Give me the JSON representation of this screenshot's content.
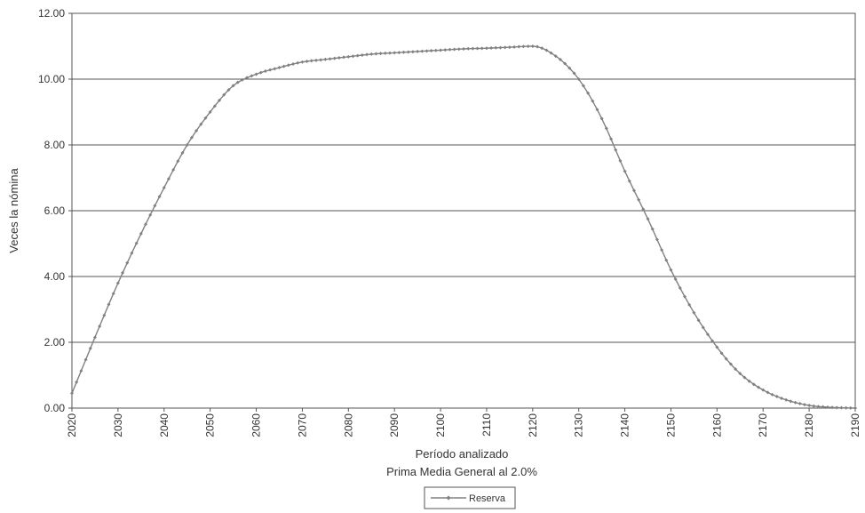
{
  "chart_data": {
    "type": "line",
    "title": "",
    "xlabel": "Período analizado",
    "xlabel_sub": "Prima Media General al 2.0%",
    "ylabel": "Veces la nómina",
    "xlim": [
      2020,
      2190
    ],
    "ylim": [
      0,
      12
    ],
    "x_ticks": [
      "2020",
      "2030",
      "2040",
      "2050",
      "2060",
      "2070",
      "2080",
      "2090",
      "2100",
      "2110",
      "2120",
      "2130",
      "2140",
      "2150",
      "2160",
      "2170",
      "2180",
      "2190"
    ],
    "y_ticks": [
      "0.00",
      "2.00",
      "4.00",
      "6.00",
      "8.00",
      "10.00",
      "12.00"
    ],
    "grid": "horizontal",
    "legend_position": "bottom-center",
    "series": [
      {
        "name": "Reserva",
        "color": "#808080",
        "marker": "diamond",
        "x": [
          2020,
          2025,
          2030,
          2035,
          2040,
          2045,
          2050,
          2055,
          2060,
          2065,
          2070,
          2075,
          2080,
          2085,
          2090,
          2095,
          2100,
          2105,
          2110,
          2115,
          2120,
          2125,
          2130,
          2135,
          2140,
          2145,
          2150,
          2155,
          2160,
          2165,
          2170,
          2175,
          2180,
          2185,
          2190
        ],
        "y": [
          0.45,
          2.15,
          3.8,
          5.3,
          6.7,
          8.0,
          9.0,
          9.8,
          10.15,
          10.35,
          10.52,
          10.6,
          10.68,
          10.76,
          10.8,
          10.84,
          10.88,
          10.92,
          10.94,
          10.97,
          11.0,
          10.7,
          10.0,
          8.8,
          7.2,
          5.75,
          4.2,
          2.9,
          1.85,
          1.05,
          0.55,
          0.25,
          0.08,
          0.02,
          0.0
        ]
      }
    ]
  }
}
